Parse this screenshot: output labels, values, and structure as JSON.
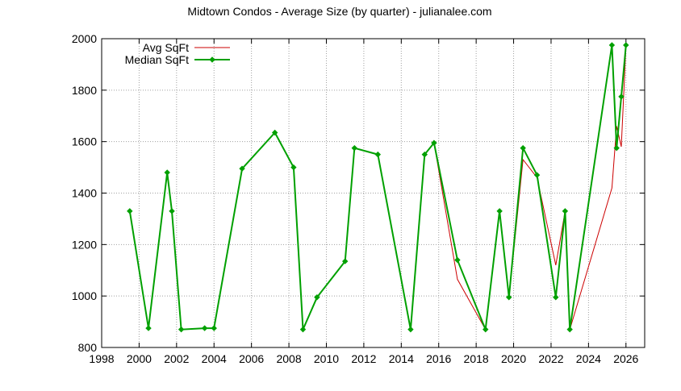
{
  "chart_data": {
    "type": "line",
    "title": "Midtown Condos - Average Size (by quarter) - julianalee.com",
    "xlabel": "",
    "ylabel": "",
    "xlim": [
      1998,
      2027
    ],
    "ylim": [
      800,
      2000
    ],
    "x_ticks": [
      1998,
      2000,
      2002,
      2004,
      2006,
      2008,
      2010,
      2012,
      2014,
      2016,
      2018,
      2020,
      2022,
      2024,
      2026
    ],
    "y_ticks": [
      800,
      1000,
      1200,
      1400,
      1600,
      1800,
      2000
    ],
    "grid": true,
    "legend_position": "top-left",
    "series": [
      {
        "name": "Avg SqFt",
        "color": "#cc0000",
        "marker": "none",
        "x": [
          1999.5,
          2000.5,
          2001.5,
          2001.75,
          2002.25,
          2003.5,
          2004.0,
          2005.5,
          2007.25,
          2008.25,
          2008.75,
          2009.5,
          2011.0,
          2011.5,
          2012.75,
          2014.5,
          2015.25,
          2015.75,
          2017.0,
          2018.5,
          2019.25,
          2019.75,
          2020.5,
          2021.25,
          2022.25,
          2022.75,
          2023.0,
          2025.25,
          2025.5,
          2025.75,
          2026.0
        ],
        "values": [
          1330,
          875,
          1480,
          1330,
          870,
          875,
          875,
          1495,
          1635,
          1500,
          870,
          995,
          1135,
          1575,
          1550,
          870,
          1550,
          1595,
          1065,
          870,
          1330,
          995,
          1530,
          1460,
          1120,
          1330,
          870,
          1420,
          1660,
          1580,
          1975
        ]
      },
      {
        "name": "Median SqFt",
        "color": "#00a000",
        "marker": "diamond",
        "x": [
          1999.5,
          2000.5,
          2001.5,
          2001.75,
          2002.25,
          2003.5,
          2004.0,
          2005.5,
          2007.25,
          2008.25,
          2008.75,
          2009.5,
          2011.0,
          2011.5,
          2012.75,
          2014.5,
          2015.25,
          2015.75,
          2017.0,
          2018.5,
          2019.25,
          2019.75,
          2020.5,
          2021.25,
          2022.25,
          2022.75,
          2023.0,
          2025.25,
          2025.5,
          2025.75,
          2026.0
        ],
        "values": [
          1330,
          875,
          1480,
          1330,
          870,
          875,
          875,
          1495,
          1635,
          1500,
          870,
          995,
          1135,
          1575,
          1550,
          870,
          1550,
          1595,
          1140,
          870,
          1330,
          995,
          1575,
          1470,
          995,
          1330,
          870,
          1975,
          1575,
          1775,
          1975
        ]
      }
    ]
  }
}
